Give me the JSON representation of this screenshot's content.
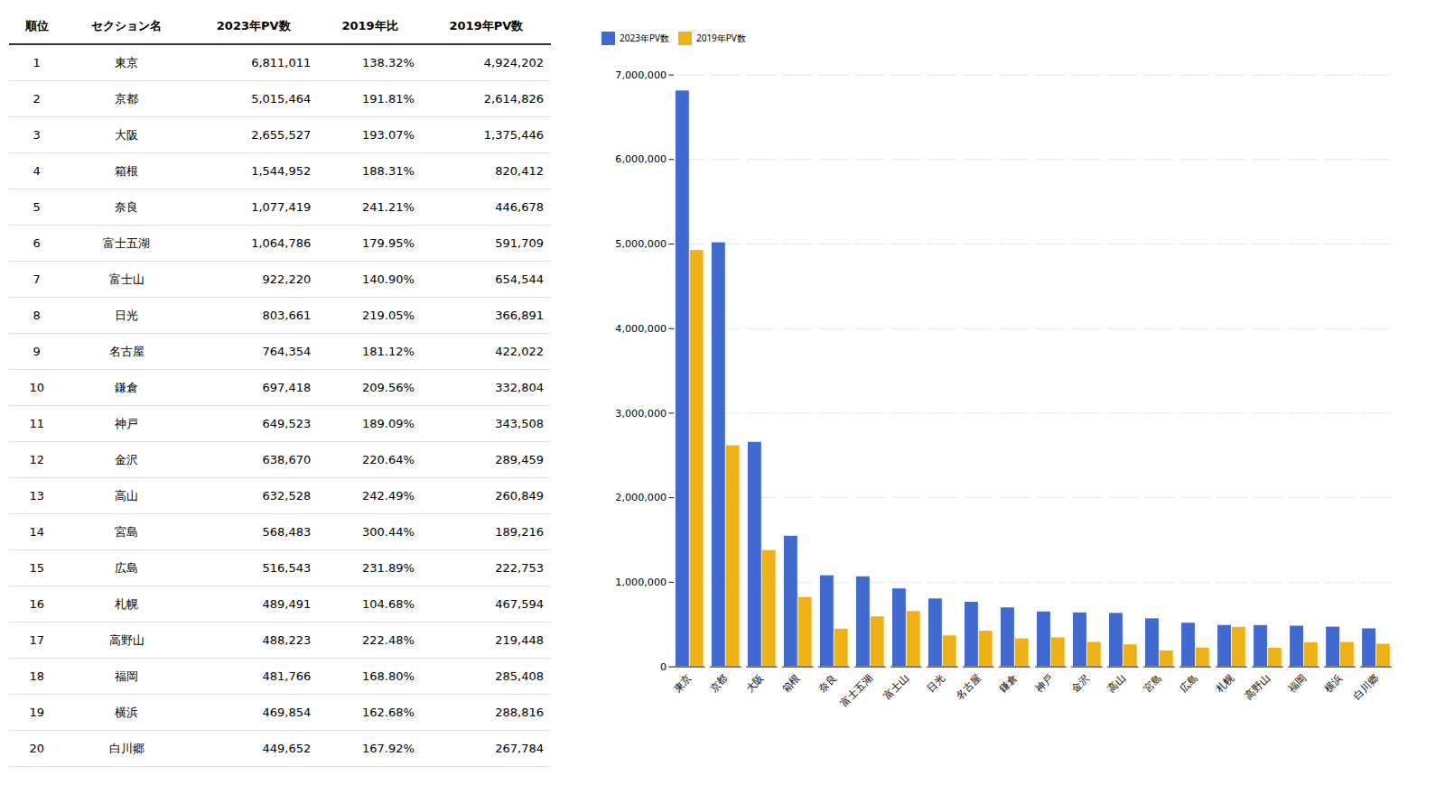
{
  "chart_data": [
    {
      "type": "bar",
      "categories": [
        "東京",
        "京都",
        "大阪",
        "箱根",
        "奈良",
        "富士五湖",
        "富士山",
        "日光",
        "名古屋",
        "鎌倉",
        "神戸",
        "金沢",
        "高山",
        "宮島",
        "広島",
        "札幌",
        "高野山",
        "福岡",
        "横浜",
        "白川郷"
      ],
      "series": [
        {
          "name": "2023年PV数",
          "values": [
            6811011,
            5015464,
            2655527,
            1544952,
            1077419,
            1064786,
            922220,
            803661,
            764354,
            697418,
            649523,
            638670,
            632528,
            568483,
            516543,
            489491,
            488223,
            481766,
            469854,
            449652
          ]
        },
        {
          "name": "2019年PV数",
          "values": [
            4924202,
            2614826,
            1375446,
            820412,
            446678,
            591709,
            654544,
            366891,
            422022,
            332804,
            343508,
            289459,
            260849,
            189216,
            222753,
            467594,
            219448,
            285408,
            288816,
            267784
          ]
        }
      ],
      "ylim": [
        0,
        7000000
      ],
      "yticks": [
        0,
        {
          "value": 1000000,
          "label": "1,000,000"
        },
        {
          "value": 2000000,
          "label": "2,000,000"
        },
        {
          "value": 3000000,
          "label": "3,000,000"
        },
        {
          "value": 4000000,
          "label": "4,000,000"
        },
        {
          "value": 5000000,
          "label": "5,000,000"
        },
        {
          "value": 6000000,
          "label": "6,000,000"
        },
        {
          "value": 7000000,
          "label": "7,000,000"
        }
      ],
      "grid": true,
      "legend": "top"
    },
    {
      "type": "table",
      "columns": [
        "順位",
        "セクション名",
        "2023年PV数",
        "2019年比",
        "2019年PV数"
      ],
      "rows": [
        [
          1,
          "東京",
          {
            "value": 6811011,
            "label": "6,811,011"
          },
          {
            "value": 138.32,
            "label": "138.32%"
          },
          {
            "value": 4924202,
            "label": "4,924,202"
          }
        ],
        [
          2,
          "京都",
          {
            "value": 5015464,
            "label": "5,015,464"
          },
          {
            "value": 191.81,
            "label": "191.81%"
          },
          {
            "value": 2614826,
            "label": "2,614,826"
          }
        ],
        [
          3,
          "大阪",
          {
            "value": 2655527,
            "label": "2,655,527"
          },
          {
            "value": 193.07,
            "label": "193.07%"
          },
          {
            "value": 1375446,
            "label": "1,375,446"
          }
        ],
        [
          4,
          "箱根",
          {
            "value": 1544952,
            "label": "1,544,952"
          },
          {
            "value": 188.31,
            "label": "188.31%"
          },
          {
            "value": 820412,
            "label": "820,412"
          }
        ],
        [
          5,
          "奈良",
          {
            "value": 1077419,
            "label": "1,077,419"
          },
          {
            "value": 241.21,
            "label": "241.21%"
          },
          {
            "value": 446678,
            "label": "446,678"
          }
        ],
        [
          6,
          "富士五湖",
          {
            "value": 1064786,
            "label": "1,064,786"
          },
          {
            "value": 179.95,
            "label": "179.95%"
          },
          {
            "value": 591709,
            "label": "591,709"
          }
        ],
        [
          7,
          "富士山",
          {
            "value": 922220,
            "label": "922,220"
          },
          {
            "value": 140.9,
            "label": "140.90%"
          },
          {
            "value": 654544,
            "label": "654,544"
          }
        ],
        [
          8,
          "日光",
          {
            "value": 803661,
            "label": "803,661"
          },
          {
            "value": 219.05,
            "label": "219.05%"
          },
          {
            "value": 366891,
            "label": "366,891"
          }
        ],
        [
          9,
          "名古屋",
          {
            "value": 764354,
            "label": "764,354"
          },
          {
            "value": 181.12,
            "label": "181.12%"
          },
          {
            "value": 422022,
            "label": "422,022"
          }
        ],
        [
          10,
          "鎌倉",
          {
            "value": 697418,
            "label": "697,418"
          },
          {
            "value": 209.56,
            "label": "209.56%"
          },
          {
            "value": 332804,
            "label": "332,804"
          }
        ],
        [
          11,
          "神戸",
          {
            "value": 649523,
            "label": "649,523"
          },
          {
            "value": 189.09,
            "label": "189.09%"
          },
          {
            "value": 343508,
            "label": "343,508"
          }
        ],
        [
          12,
          "金沢",
          {
            "value": 638670,
            "label": "638,670"
          },
          {
            "value": 220.64,
            "label": "220.64%"
          },
          {
            "value": 289459,
            "label": "289,459"
          }
        ],
        [
          13,
          "高山",
          {
            "value": 632528,
            "label": "632,528"
          },
          {
            "value": 242.49,
            "label": "242.49%"
          },
          {
            "value": 260849,
            "label": "260,849"
          }
        ],
        [
          14,
          "宮島",
          {
            "value": 568483,
            "label": "568,483"
          },
          {
            "value": 300.44,
            "label": "300.44%"
          },
          {
            "value": 189216,
            "label": "189,216"
          }
        ],
        [
          15,
          "広島",
          {
            "value": 516543,
            "label": "516,543"
          },
          {
            "value": 231.89,
            "label": "231.89%"
          },
          {
            "value": 222753,
            "label": "222,753"
          }
        ],
        [
          16,
          "札幌",
          {
            "value": 489491,
            "label": "489,491"
          },
          {
            "value": 104.68,
            "label": "104.68%"
          },
          {
            "value": 467594,
            "label": "467,594"
          }
        ],
        [
          17,
          "高野山",
          {
            "value": 488223,
            "label": "488,223"
          },
          {
            "value": 222.48,
            "label": "222.48%"
          },
          {
            "value": 219448,
            "label": "219,448"
          }
        ],
        [
          18,
          "福岡",
          {
            "value": 481766,
            "label": "481,766"
          },
          {
            "value": 168.8,
            "label": "168.80%"
          },
          {
            "value": 285408,
            "label": "285,408"
          }
        ],
        [
          19,
          "横浜",
          {
            "value": 469854,
            "label": "469,854"
          },
          {
            "value": 162.68,
            "label": "162.68%"
          },
          {
            "value": 288816,
            "label": "288,816"
          }
        ],
        [
          20,
          "白川郷",
          {
            "value": 449652,
            "label": "449,652"
          },
          {
            "value": 167.92,
            "label": "167.92%"
          },
          {
            "value": 267784,
            "label": "267,784"
          }
        ]
      ]
    }
  ]
}
